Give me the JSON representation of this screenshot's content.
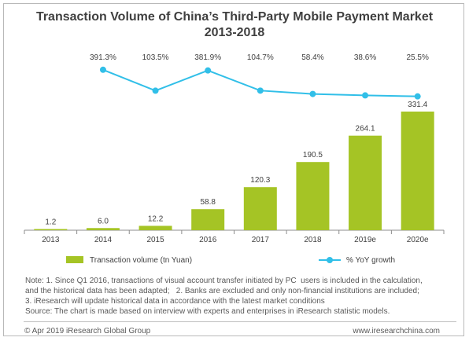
{
  "chart_data": {
    "type": "bar",
    "title_line1": "Transaction Volume of China’s Third-Party Mobile Payment Market",
    "title_line2": "2013-2018",
    "categories": [
      "2013",
      "2014",
      "2015",
      "2016",
      "2017",
      "2018",
      "2019e",
      "2020e"
    ],
    "bar_series": {
      "name": "Transaction volume (tn Yuan)",
      "color": "#a5c425",
      "values": [
        1.2,
        6.0,
        12.2,
        58.8,
        120.3,
        190.5,
        264.1,
        331.4
      ],
      "labels": [
        "1.2",
        "6.0",
        "12.2",
        "58.8",
        "120.3",
        "190.5",
        "264.1",
        "331.4"
      ]
    },
    "line_series": {
      "name": "% YoY growth",
      "color": "#31bfe8",
      "categories": [
        "2014",
        "2015",
        "2016",
        "2017",
        "2018",
        "2019e",
        "2020e"
      ],
      "values": [
        391.3,
        103.5,
        381.9,
        104.7,
        58.4,
        38.6,
        25.5
      ],
      "labels": [
        "391.3%",
        "103.5%",
        "381.9%",
        "104.7%",
        "58.4%",
        "38.6%",
        "25.5%"
      ]
    },
    "ylim_bars": [
      0,
      331.4
    ],
    "grid": false,
    "legend_position": "bottom"
  },
  "notes": [
    "Note: 1. Since Q1 2016, transactions of visual account transfer initiated by PC  users is included in the calculation,",
    "and the historical data has been adapted;   2. Banks are excluded and only non-financial institutions are included;",
    "3. iResearch will update historical data in accordance with the latest market conditions",
    "Source: The chart is made based on interview with experts and enterprises in iResearch statistic models."
  ],
  "footer": {
    "left": "© Apr 2019  iResearch Global Group",
    "right": "www.iresearchchina.com"
  }
}
